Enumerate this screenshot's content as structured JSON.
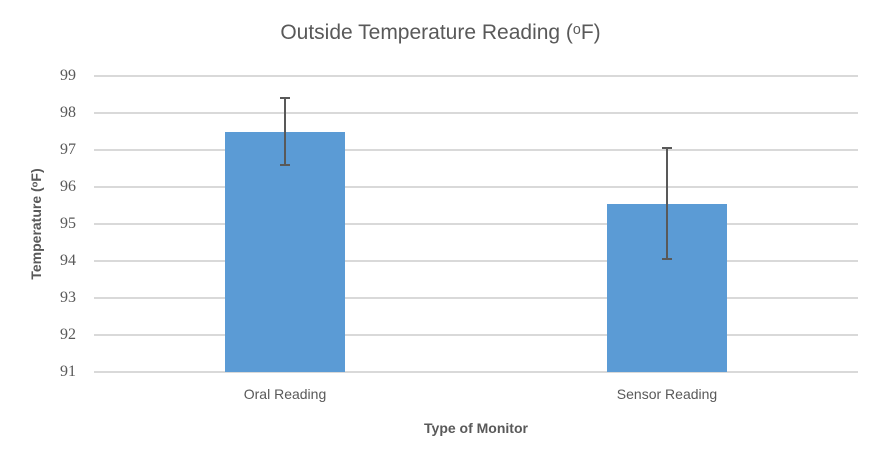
{
  "chart_data": {
    "type": "bar",
    "title": "Outside Temperature Reading (ᵒF)",
    "xlabel": "Type of Monitor",
    "ylabel": "Temperature (ᵒF)",
    "categories": [
      "Oral Reading",
      "Sensor Reading"
    ],
    "values": [
      97.5,
      95.55
    ],
    "error_bars": [
      0.9,
      1.5
    ],
    "ylim": [
      91,
      99
    ],
    "yticks": [
      99,
      98,
      97,
      96,
      95,
      94,
      93,
      92,
      91
    ],
    "grid": true,
    "legend_position": "none",
    "bar_color": "#5B9BD5",
    "gridline_color": "#D9D9D9",
    "error_bar_color": "#595959",
    "text_color": "#595959"
  }
}
